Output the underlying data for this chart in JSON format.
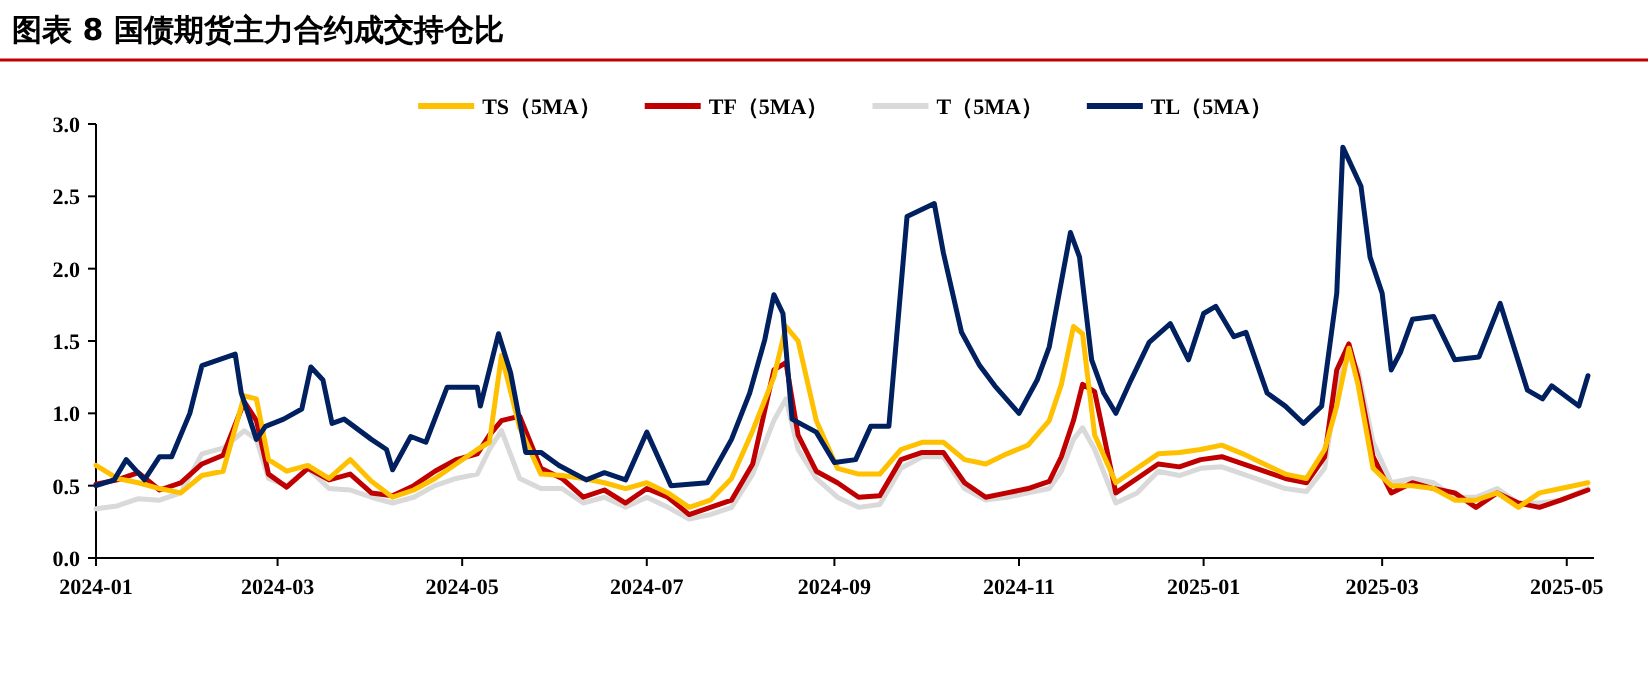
{
  "chart_data": {
    "type": "line",
    "title": "图表 8  国债期货主力合约成交持仓比",
    "x": [
      "2024-01-01",
      "2024-01-08",
      "2024-01-15",
      "2024-01-22",
      "2024-01-29",
      "2024-02-05",
      "2024-02-12",
      "2024-02-19",
      "2024-02-23",
      "2024-02-27",
      "2024-03-04",
      "2024-03-11",
      "2024-03-18",
      "2024-03-25",
      "2024-04-01",
      "2024-04-08",
      "2024-04-15",
      "2024-04-22",
      "2024-04-29",
      "2024-05-06",
      "2024-05-10",
      "2024-05-14",
      "2024-05-20",
      "2024-05-27",
      "2024-06-03",
      "2024-06-10",
      "2024-06-17",
      "2024-06-24",
      "2024-07-01",
      "2024-07-08",
      "2024-07-15",
      "2024-07-22",
      "2024-07-29",
      "2024-08-05",
      "2024-08-12",
      "2024-08-16",
      "2024-08-20",
      "2024-08-26",
      "2024-09-02",
      "2024-09-09",
      "2024-09-16",
      "2024-09-23",
      "2024-09-30",
      "2024-10-07",
      "2024-10-14",
      "2024-10-21",
      "2024-10-28",
      "2024-11-04",
      "2024-11-11",
      "2024-11-15",
      "2024-11-19",
      "2024-11-22",
      "2024-11-26",
      "2024-12-03",
      "2024-12-10",
      "2024-12-17",
      "2024-12-24",
      "2024-12-31",
      "2025-01-07",
      "2025-01-14",
      "2025-01-21",
      "2025-01-28",
      "2025-02-04",
      "2025-02-10",
      "2025-02-14",
      "2025-02-18",
      "2025-02-21",
      "2025-02-26",
      "2025-03-04",
      "2025-03-11",
      "2025-03-18",
      "2025-03-25",
      "2025-04-01",
      "2025-04-08",
      "2025-04-15",
      "2025-04-22",
      "2025-04-29",
      "2025-05-08"
    ],
    "series": [
      {
        "name": "TS（5MA）",
        "color": "#ffc000",
        "values": [
          0.64,
          0.55,
          0.52,
          0.48,
          0.45,
          0.57,
          0.6,
          1.12,
          1.1,
          0.68,
          0.6,
          0.64,
          0.55,
          0.68,
          0.53,
          0.42,
          0.47,
          0.55,
          0.65,
          0.75,
          0.8,
          1.4,
          0.9,
          0.58,
          0.57,
          0.55,
          0.52,
          0.48,
          0.52,
          0.45,
          0.35,
          0.4,
          0.55,
          0.88,
          1.25,
          1.6,
          1.5,
          0.95,
          0.62,
          0.58,
          0.58,
          0.75,
          0.8,
          0.8,
          0.68,
          0.65,
          0.72,
          0.78,
          0.95,
          1.2,
          1.6,
          1.55,
          0.85,
          0.52,
          0.62,
          0.72,
          0.73,
          0.75,
          0.78,
          0.72,
          0.65,
          0.58,
          0.55,
          0.75,
          1.05,
          1.45,
          1.2,
          0.62,
          0.5,
          0.5,
          0.48,
          0.4,
          0.4,
          0.45,
          0.35,
          0.45,
          0.48,
          0.52
        ]
      },
      {
        "name": "TF（5MA）",
        "color": "#c00000",
        "values": [
          0.51,
          0.54,
          0.59,
          0.47,
          0.52,
          0.65,
          0.71,
          1.08,
          0.95,
          0.58,
          0.49,
          0.62,
          0.54,
          0.58,
          0.45,
          0.43,
          0.5,
          0.6,
          0.68,
          0.72,
          0.85,
          0.95,
          0.98,
          0.62,
          0.55,
          0.42,
          0.47,
          0.38,
          0.48,
          0.42,
          0.3,
          0.35,
          0.4,
          0.65,
          1.3,
          1.35,
          0.85,
          0.6,
          0.52,
          0.42,
          0.43,
          0.68,
          0.73,
          0.73,
          0.52,
          0.42,
          0.45,
          0.48,
          0.53,
          0.7,
          0.95,
          1.2,
          1.15,
          0.45,
          0.55,
          0.65,
          0.63,
          0.68,
          0.7,
          0.65,
          0.6,
          0.55,
          0.52,
          0.7,
          1.3,
          1.48,
          1.25,
          0.7,
          0.45,
          0.52,
          0.48,
          0.45,
          0.35,
          0.45,
          0.38,
          0.35,
          0.4,
          0.47
        ]
      },
      {
        "name": "T（5MA）",
        "color": "#d9d9d9",
        "values": [
          0.34,
          0.36,
          0.41,
          0.4,
          0.45,
          0.72,
          0.76,
          0.88,
          0.82,
          0.55,
          0.5,
          0.62,
          0.48,
          0.47,
          0.42,
          0.38,
          0.42,
          0.5,
          0.55,
          0.58,
          0.75,
          0.88,
          0.55,
          0.48,
          0.48,
          0.38,
          0.42,
          0.35,
          0.42,
          0.35,
          0.27,
          0.3,
          0.35,
          0.58,
          0.95,
          1.1,
          0.75,
          0.55,
          0.42,
          0.35,
          0.37,
          0.62,
          0.7,
          0.7,
          0.48,
          0.4,
          0.42,
          0.45,
          0.48,
          0.6,
          0.82,
          0.9,
          0.75,
          0.38,
          0.45,
          0.6,
          0.57,
          0.62,
          0.63,
          0.58,
          0.53,
          0.48,
          0.46,
          0.62,
          1.2,
          1.4,
          1.3,
          0.8,
          0.52,
          0.55,
          0.52,
          0.42,
          0.42,
          0.48,
          0.38,
          0.38,
          0.4,
          0.48
        ]
      },
      {
        "name": "TL（5MA）",
        "color": "#002060",
        "x": [
          "2024-01-01",
          "2024-01-07",
          "2024-01-11",
          "2024-01-17",
          "2024-01-22",
          "2024-01-26",
          "2024-02-01",
          "2024-02-05",
          "2024-02-16",
          "2024-02-18",
          "2024-02-23",
          "2024-02-26",
          "2024-03-03",
          "2024-03-09",
          "2024-03-12",
          "2024-03-16",
          "2024-03-19",
          "2024-03-23",
          "2024-04-01",
          "2024-04-06",
          "2024-04-08",
          "2024-04-14",
          "2024-04-19",
          "2024-04-26",
          "2024-05-06",
          "2024-05-07",
          "2024-05-13",
          "2024-05-17",
          "2024-05-22",
          "2024-05-27",
          "2024-06-02",
          "2024-06-11",
          "2024-06-17",
          "2024-06-24",
          "2024-07-01",
          "2024-07-09",
          "2024-07-21",
          "2024-07-29",
          "2024-08-04",
          "2024-08-09",
          "2024-08-12",
          "2024-08-15",
          "2024-08-18",
          "2024-08-26",
          "2024-09-01",
          "2024-09-08",
          "2024-09-13",
          "2024-09-19",
          "2024-09-25",
          "2024-10-04",
          "2024-10-07",
          "2024-10-13",
          "2024-10-19",
          "2024-10-24",
          "2024-11-01",
          "2024-11-07",
          "2024-11-11",
          "2024-11-18",
          "2024-11-21",
          "2024-11-25",
          "2024-11-29",
          "2024-12-03",
          "2024-12-08",
          "2024-12-14",
          "2024-12-21",
          "2024-12-27",
          "2025-01-01",
          "2025-01-05",
          "2025-01-11",
          "2025-01-15",
          "2025-01-22",
          "2025-01-28",
          "2025-02-03",
          "2025-02-09",
          "2025-02-14",
          "2025-02-16",
          "2025-02-22",
          "2025-02-25",
          "2025-03-01",
          "2025-03-04",
          "2025-03-07",
          "2025-03-11",
          "2025-03-18",
          "2025-03-25",
          "2025-04-02",
          "2025-04-09",
          "2025-04-18",
          "2025-04-23",
          "2025-04-26",
          "2025-05-05",
          "2025-05-08"
        ],
        "values": [
          0.5,
          0.54,
          0.68,
          0.54,
          0.7,
          0.7,
          1.0,
          1.33,
          1.41,
          1.14,
          0.82,
          0.91,
          0.96,
          1.03,
          1.32,
          1.23,
          0.93,
          0.96,
          0.82,
          0.75,
          0.61,
          0.84,
          0.8,
          1.18,
          1.18,
          1.05,
          1.55,
          1.28,
          0.73,
          0.73,
          0.64,
          0.54,
          0.59,
          0.54,
          0.87,
          0.5,
          0.52,
          0.82,
          1.14,
          1.51,
          1.82,
          1.69,
          0.96,
          0.87,
          0.66,
          0.68,
          0.91,
          0.91,
          2.36,
          2.45,
          2.11,
          1.56,
          1.33,
          1.19,
          1.0,
          1.23,
          1.46,
          2.25,
          2.08,
          1.37,
          1.14,
          1.0,
          1.23,
          1.49,
          1.62,
          1.37,
          1.69,
          1.74,
          1.53,
          1.56,
          1.14,
          1.05,
          0.93,
          1.05,
          1.83,
          2.84,
          2.57,
          2.08,
          1.83,
          1.3,
          1.42,
          1.65,
          1.67,
          1.37,
          1.39,
          1.76,
          1.16,
          1.1,
          1.19,
          1.05,
          1.26
        ]
      }
    ],
    "xlim": [
      "2024-01-01",
      "2025-05-10"
    ],
    "xticks": [
      "2024-01",
      "2024-03",
      "2024-05",
      "2024-07",
      "2024-09",
      "2024-11",
      "2025-01",
      "2025-03",
      "2025-05"
    ],
    "ylim": [
      0,
      3
    ],
    "yticks": [
      {
        "value": 0,
        "label": "0.0"
      },
      {
        "value": 0.5,
        "label": "0.5"
      },
      {
        "value": 1,
        "label": "1.0"
      },
      {
        "value": 1.5,
        "label": "1.5"
      },
      {
        "value": 2,
        "label": "2.0"
      },
      {
        "value": 2.5,
        "label": "2.5"
      },
      {
        "value": 3,
        "label": "3.0"
      }
    ],
    "grid": false,
    "legend": "top",
    "marker": "none",
    "line_style": "solid"
  }
}
